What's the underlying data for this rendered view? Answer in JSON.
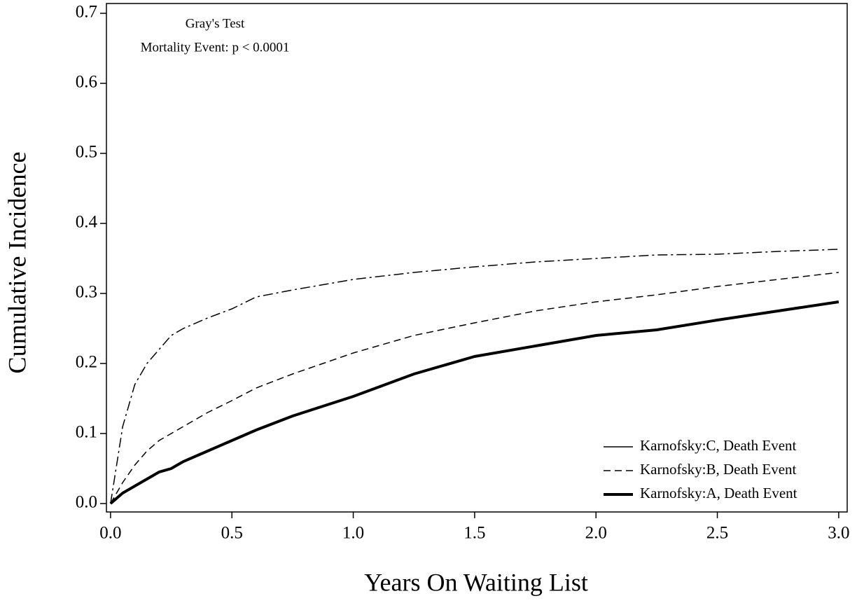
{
  "chart_data": {
    "type": "line",
    "xlabel": "Years On Waiting List",
    "ylabel": "Cumulative Incidence",
    "annotations": [
      "Gray's Test",
      "Mortality Event: p < 0.0001"
    ],
    "x": [
      0,
      0.05,
      0.1,
      0.15,
      0.2,
      0.25,
      0.3,
      0.4,
      0.5,
      0.6,
      0.75,
      1.0,
      1.25,
      1.5,
      1.75,
      2.0,
      2.25,
      2.5,
      2.75,
      3.0
    ],
    "series": [
      {
        "name": "Karnofsky:C, Death Event",
        "color": "#000000",
        "dash": "dashdot",
        "width": 1.5,
        "values": [
          0,
          0.11,
          0.17,
          0.2,
          0.22,
          0.24,
          0.25,
          0.265,
          0.278,
          0.295,
          0.305,
          0.32,
          0.33,
          0.338,
          0.345,
          0.35,
          0.355,
          0.356,
          0.36,
          0.363
        ]
      },
      {
        "name": "Karnofsky:B, Death Event",
        "color": "#000000",
        "dash": "dashed",
        "width": 1.5,
        "values": [
          0,
          0.03,
          0.055,
          0.075,
          0.09,
          0.1,
          0.11,
          0.13,
          0.147,
          0.165,
          0.185,
          0.215,
          0.24,
          0.258,
          0.275,
          0.288,
          0.298,
          0.31,
          0.32,
          0.33
        ]
      },
      {
        "name": "Karnofsky:A, Death Event",
        "color": "#000000",
        "dash": "solid",
        "width": 4,
        "values": [
          0,
          0.015,
          0.025,
          0.035,
          0.045,
          0.05,
          0.06,
          0.075,
          0.09,
          0.105,
          0.125,
          0.153,
          0.185,
          0.21,
          0.225,
          0.24,
          0.248,
          0.262,
          0.275,
          0.288
        ]
      }
    ],
    "xlim": [
      -0.017,
      3.035
    ],
    "ylim": [
      -0.012,
      0.714
    ],
    "xticks": [
      {
        "value": 0,
        "label": "0.0"
      },
      0.5,
      {
        "value": 1,
        "label": "1.0"
      },
      1.5,
      {
        "value": 2,
        "label": "2.0"
      },
      2.5,
      {
        "value": 3,
        "label": "3.0"
      }
    ],
    "yticks": [
      {
        "value": 0,
        "label": "0.0"
      },
      0.1,
      0.2,
      0.3,
      0.4,
      0.5,
      0.6,
      0.7
    ],
    "grid": false,
    "legend": "lower right"
  }
}
